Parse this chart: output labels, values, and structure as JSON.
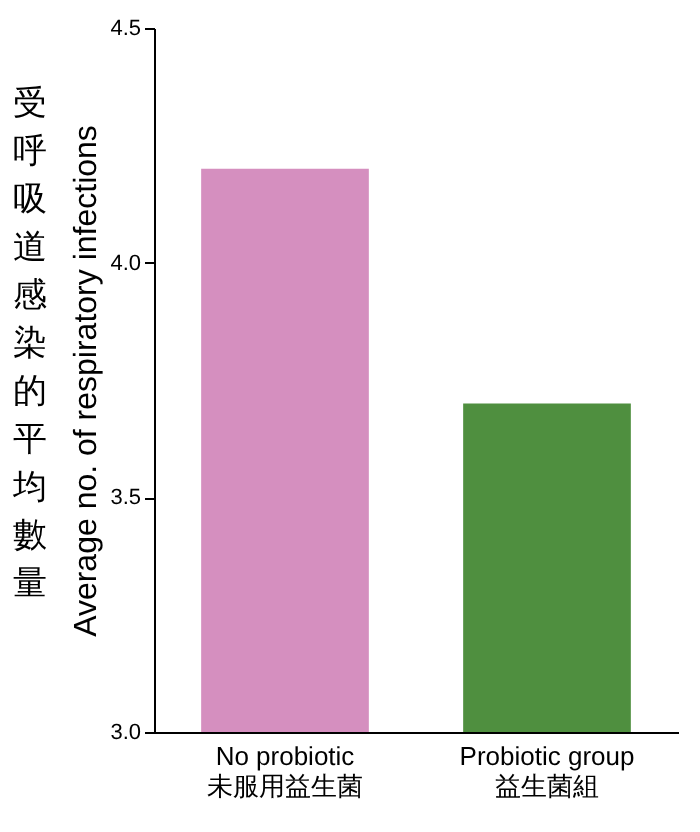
{
  "chart_data": {
    "type": "bar",
    "ylabel": "Average no. of respiratory infections",
    "annotations": [
      "受呼吸道感染的平均數量"
    ],
    "categories": [
      "No probiotic\n未服用益生菌",
      "Probiotic group\n益生菌組"
    ],
    "values": [
      4.2,
      3.7
    ],
    "colors": [
      "#d58fbf",
      "#4f8f3f"
    ],
    "ylim": [
      3.0,
      4.5
    ],
    "yticks": [
      {
        "value": 3.0,
        "label": "3.0"
      },
      {
        "value": 3.5,
        "label": "3.5"
      },
      {
        "value": 4.0,
        "label": "4.0"
      },
      {
        "value": 4.5,
        "label": "4.5"
      }
    ],
    "grid": false
  }
}
